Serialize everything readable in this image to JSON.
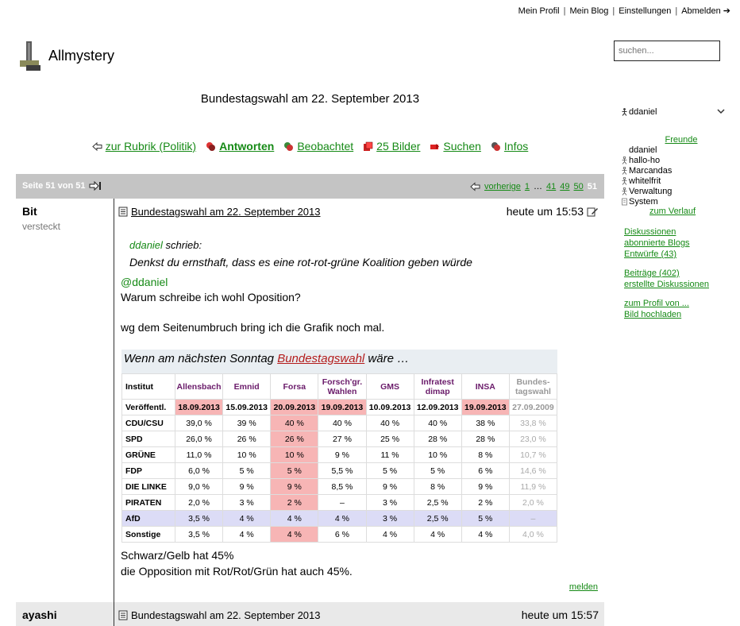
{
  "topnav": {
    "items": [
      "Mein Profil",
      "Mein Blog",
      "Einstellungen",
      "Abmelden ➔"
    ]
  },
  "brand": {
    "name": "Allmystery"
  },
  "search": {
    "placeholder": "suchen..."
  },
  "thread": {
    "title": "Bundestagswahl am 22. September 2013"
  },
  "actions": [
    {
      "label": "zur Rubrik (Politik)",
      "icon": "arrow-left-icon"
    },
    {
      "label": "Antworten",
      "icon": "reply-icon"
    },
    {
      "label": "Beobachtet",
      "icon": "watch-icon"
    },
    {
      "label": "25 Bilder",
      "icon": "images-icon"
    },
    {
      "label": "Suchen",
      "icon": "search-icon"
    },
    {
      "label": "Infos",
      "icon": "info-icon"
    }
  ],
  "pagination": {
    "info": "Seite 51 von 51",
    "prev": "vorherige",
    "pages": [
      "1",
      "…",
      "41",
      "49",
      "50"
    ],
    "current": "51"
  },
  "post1": {
    "author": "Bit",
    "status": "versteckt",
    "title": "Bundestagswahl am 22. September 2013",
    "time": "heute um 15:53",
    "quote_author": "ddaniel",
    "quote_suffix": " schrieb:",
    "quote_text": "Denkst du ernsthaft, dass es eine rot-rot-grüne Koalition geben würde",
    "mention": "@ddaniel",
    "line1": "Warum schreibe ich wohl Oposition?",
    "line2": "wg dem Seitenumbruch bring ich die Grafik noch mal.",
    "line3": "Schwarz/Gelb hat 45%",
    "line4": "die Opposition mit Rot/Rot/Grün hat auch 45%.",
    "report": "melden"
  },
  "poll": {
    "title_prefix": "Wenn am nächsten Sonntag ",
    "title_link": "Bundestagswahl",
    "title_suffix": " wäre …",
    "headers": [
      "Institut",
      "Allensbach",
      "Emnid",
      "Forsa",
      "Forsch'gr. Wahlen",
      "GMS",
      "Infratest dimap",
      "INSA",
      "Bundes-tagswahl"
    ],
    "dates_label": "Veröffentl.",
    "dates": [
      "18.09.2013",
      "15.09.2013",
      "20.09.2013",
      "19.09.2013",
      "10.09.2013",
      "12.09.2013",
      "19.09.2013",
      "27.09.2009"
    ],
    "rows": [
      {
        "party": "CDU/CSU",
        "values": [
          "39,0 %",
          "39 %",
          "40 %",
          "40 %",
          "40 %",
          "40 %",
          "38 %",
          "33,8 %"
        ]
      },
      {
        "party": "SPD",
        "values": [
          "26,0 %",
          "26 %",
          "26 %",
          "27 %",
          "25 %",
          "28 %",
          "28 %",
          "23,0 %"
        ]
      },
      {
        "party": "GRÜNE",
        "values": [
          "11,0 %",
          "10 %",
          "10 %",
          "9 %",
          "11 %",
          "10 %",
          "8 %",
          "10,7 %"
        ]
      },
      {
        "party": "FDP",
        "values": [
          "6,0 %",
          "5 %",
          "5 %",
          "5,5 %",
          "5 %",
          "5 %",
          "6 %",
          "14,6 %"
        ]
      },
      {
        "party": "DIE LINKE",
        "values": [
          "9,0 %",
          "9 %",
          "9 %",
          "8,5 %",
          "9 %",
          "8 %",
          "9 %",
          "11,9 %"
        ]
      },
      {
        "party": "PIRATEN",
        "values": [
          "2,0 %",
          "3 %",
          "2 %",
          "–",
          "3 %",
          "2,5 %",
          "2 %",
          "2,0 %"
        ]
      },
      {
        "party": "AfD",
        "values": [
          "3,5 %",
          "4 %",
          "4 %",
          "4 %",
          "3 %",
          "2,5 %",
          "5 %",
          "–"
        ]
      },
      {
        "party": "Sonstige",
        "values": [
          "3,5 %",
          "4 %",
          "4 %",
          "6 %",
          "4 %",
          "4 %",
          "4 %",
          "4,0 %"
        ]
      }
    ]
  },
  "post2": {
    "author": "ayashi",
    "title": "Bundestagswahl am 22. September 2013",
    "time": "heute um 15:57"
  },
  "sidebar": {
    "user": "ddaniel",
    "friends_header": "Freunde",
    "friends": [
      "ddaniel",
      "hallo-ho",
      "Marcandas",
      "whitelfrit",
      "Verwaltung",
      "System"
    ],
    "verlauf": "zum Verlauf",
    "group1": [
      "Diskussionen",
      "abonnierte Blogs",
      "Entwürfe (43)"
    ],
    "group2": [
      "Beiträge (402)",
      "erstellte Diskussionen"
    ],
    "group3": [
      "zum Profil von ...",
      "Bild hochladen"
    ]
  }
}
